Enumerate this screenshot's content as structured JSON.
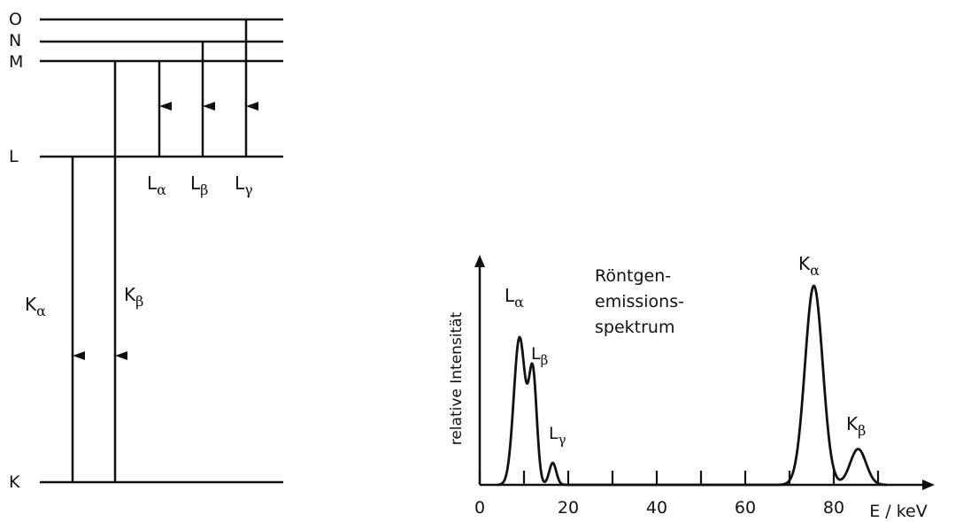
{
  "levels": [
    {
      "key": "O",
      "label": "O"
    },
    {
      "key": "N",
      "label": "N"
    },
    {
      "key": "M",
      "label": "M"
    },
    {
      "key": "L",
      "label": "L"
    },
    {
      "key": "K",
      "label": "K"
    }
  ],
  "transitions": {
    "L_alpha": {
      "main": "L",
      "sub": "α"
    },
    "L_beta": {
      "main": "L",
      "sub": "β"
    },
    "L_gamma": {
      "main": "L",
      "sub": "γ"
    },
    "K_alpha": {
      "main": "K",
      "sub": "α"
    },
    "K_beta": {
      "main": "K",
      "sub": "β"
    }
  },
  "spectrum": {
    "title_lines": [
      "Röntgen-",
      "emissions-",
      "spektrum"
    ],
    "ylabel": "relative Intensität",
    "xlabel": "E / keV",
    "peak_labels": {
      "L_alpha": {
        "main": "L",
        "sub": "α"
      },
      "L_beta": {
        "main": "L",
        "sub": "β"
      },
      "L_gamma": {
        "main": "L",
        "sub": "γ"
      },
      "K_alpha": {
        "main": "K",
        "sub": "α"
      },
      "K_beta": {
        "main": "K",
        "sub": "β"
      }
    }
  },
  "chart_data": {
    "type": "line",
    "title": "Röntgen- emissions- spektrum",
    "xlabel": "E / keV",
    "ylabel": "relative Intensität",
    "xlim": [
      0,
      100
    ],
    "ylim": [
      0,
      1
    ],
    "x_ticks": [
      0,
      10,
      20,
      30,
      40,
      50,
      60,
      70,
      80,
      90
    ],
    "x_tick_labels": [
      "0",
      "20",
      "40",
      "60",
      "80"
    ],
    "x_tick_label_values": [
      0,
      20,
      40,
      60,
      80
    ],
    "y_ticks": [],
    "grid": false,
    "peaks": [
      {
        "label": "Lα",
        "x": 9,
        "height": 0.74
      },
      {
        "label": "Lβ",
        "x": 12,
        "height": 0.55
      },
      {
        "label": "Lγ",
        "x": 16.5,
        "height": 0.11
      },
      {
        "label": "Kα",
        "x": 75.5,
        "height": 1.0
      },
      {
        "label": "Kβ",
        "x": 85.5,
        "height": 0.18
      }
    ]
  }
}
